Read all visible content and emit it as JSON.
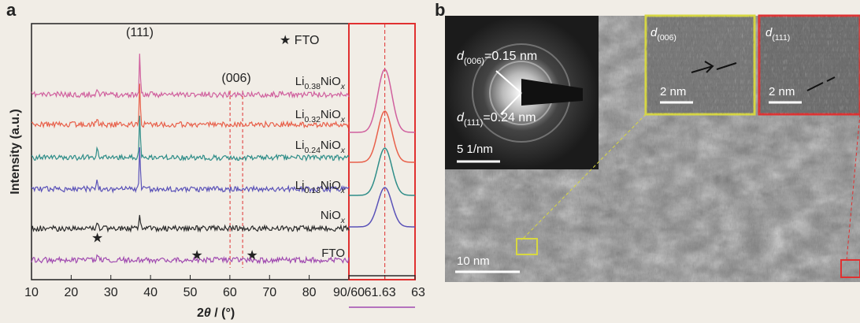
{
  "panel_a": {
    "label": "a",
    "ylabel": "Intensity (a.u.)",
    "xlabel": [
      "2",
      "θ",
      " / (°)"
    ],
    "xlim": [
      10,
      90
    ],
    "xticks": [
      10,
      20,
      30,
      40,
      50,
      60,
      70,
      80,
      {
        "value": 90,
        "label": "90/60"
      }
    ],
    "zoom_xlim": [
      60,
      63
    ],
    "zoom_xticks": [
      {
        "value": 61.63,
        "label": "61.63"
      },
      63
    ],
    "peak_111": {
      "label": "(111)",
      "position": 37.3
    },
    "peak_006": {
      "label": "(006)",
      "position": 61.63
    },
    "fto_legend": "★ FTO",
    "fto_marker": "★",
    "samples": [
      {
        "name": [
          "Li",
          "0.38",
          "NiO",
          "x"
        ],
        "color": "#d0609e"
      },
      {
        "name": [
          "Li",
          "0.32",
          "NiO",
          "x"
        ],
        "color": "#e8604a"
      },
      {
        "name": [
          "Li",
          "0.24",
          "NiO",
          "x"
        ],
        "color": "#2e8d88"
      },
      {
        "name": [
          "Li",
          "0.13",
          "NiO",
          "x"
        ],
        "color": "#5a52b8"
      },
      {
        "name": [
          "NiO",
          "x"
        ],
        "color": "#2a2a2a"
      },
      {
        "name": [
          "FTO"
        ],
        "color": "#a04ab0"
      }
    ]
  },
  "panel_b": {
    "label": "b",
    "saed_006": [
      "d",
      "(006)",
      "=0.15 nm"
    ],
    "saed_111": [
      "d",
      "(111)",
      "=0.24 nm"
    ],
    "saed_scale": "5 1/nm",
    "main_scale": "10 nm",
    "inset_006": {
      "label": [
        "d",
        "(006)"
      ],
      "scale": "2 nm"
    },
    "inset_111": {
      "label": [
        "d",
        "(111)"
      ],
      "scale": "2 nm"
    }
  }
}
